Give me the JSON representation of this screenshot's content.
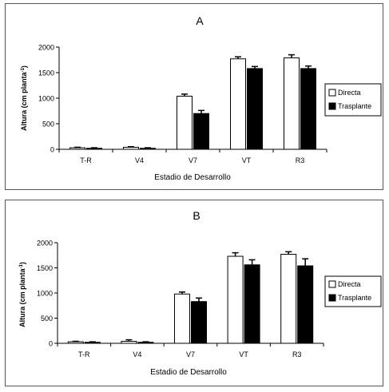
{
  "chart_data": [
    {
      "type": "bar",
      "title": "A",
      "xlabel": "Estadio de Desarrollo",
      "ylabel": "Altura (cm planta-1)",
      "ylabel_main": "Altura (cm planta",
      "ylabel_sup": "-1",
      "ylabel_close": ")",
      "ylim": [
        0,
        2000
      ],
      "yticks": [
        "0",
        "500",
        "1000",
        "1500",
        "2000"
      ],
      "categories": [
        "T-R",
        "V4",
        "V7",
        "VT",
        "R3"
      ],
      "series": [
        {
          "name": "Directa",
          "values": [
            30,
            40,
            1040,
            1770,
            1790
          ],
          "errors": [
            10,
            10,
            40,
            40,
            60
          ],
          "color": "#ffffff"
        },
        {
          "name": "Trasplante",
          "values": [
            20,
            20,
            700,
            1580,
            1580
          ],
          "errors": [
            10,
            10,
            60,
            40,
            50
          ],
          "color": "#000000"
        }
      ],
      "legend_position": "right"
    },
    {
      "type": "bar",
      "title": "B",
      "xlabel": "Estadio de Desarrollo",
      "ylabel": "Altura (cm planta-1)",
      "ylabel_main": "Altura (cm planta",
      "ylabel_sup": "-1",
      "ylabel_close": ")",
      "ylim": [
        0,
        2000
      ],
      "yticks": [
        "0",
        "500",
        "1000",
        "1500",
        "2000"
      ],
      "categories": [
        "T-R",
        "V4",
        "V7",
        "VT",
        "R3"
      ],
      "series": [
        {
          "name": "Directa",
          "values": [
            30,
            40,
            980,
            1730,
            1770
          ],
          "errors": [
            10,
            30,
            40,
            70,
            50
          ],
          "color": "#ffffff"
        },
        {
          "name": "Trasplante",
          "values": [
            20,
            20,
            830,
            1560,
            1540
          ],
          "errors": [
            10,
            10,
            70,
            100,
            140
          ],
          "color": "#000000"
        }
      ],
      "legend_position": "right"
    }
  ]
}
